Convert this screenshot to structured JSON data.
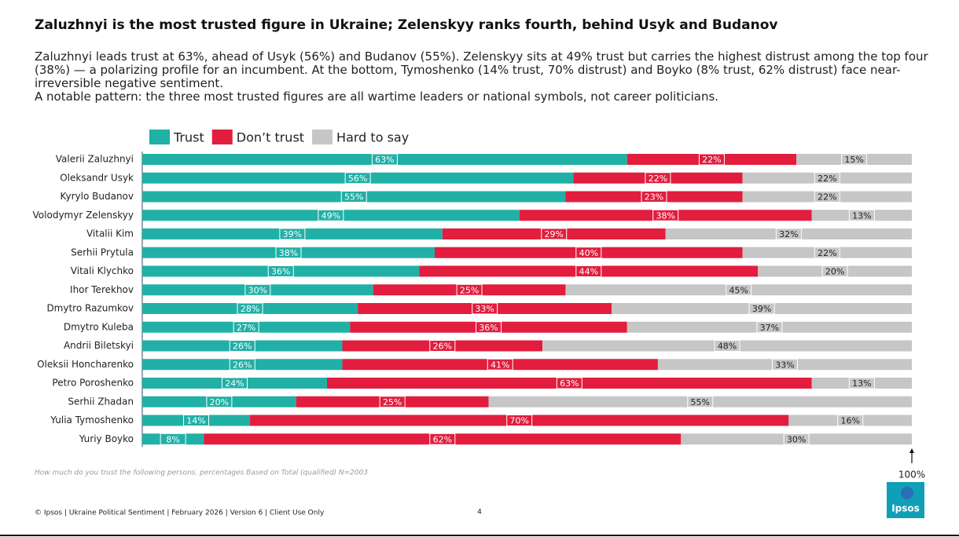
{
  "chart_data": {
    "type": "stacked-bar",
    "title": "Zaluzhnyi is the most trusted figure in Ukraine; Zelenskyy ranks fourth, behind Usyk and Budanov",
    "subtitle": [
      "Zaluzhnyi leads trust at 63%, ahead of Usyk (56%) and Budanov (55%). Zelenskyy sits at 49% trust but carries the highest distrust among the top four (38%) — a polarizing profile for an incumbent. At the bottom, Tymoshenko (14% trust, 70% distrust) and Boyko (8% trust, 62% distrust) face near-irreversible negative sentiment.",
      "A notable pattern: the three most trusted figures are all wartime leaders or national symbols, not career politicians."
    ],
    "categories": [
      "Valerii Zaluzhnyi",
      "Oleksandr Usyk",
      "Kyrylo Budanov",
      "Volodymyr Zelenskyy",
      "Vitalii Kim",
      "Serhii Prytula",
      "Vitali Klychko",
      "Ihor Terekhov",
      "Dmytro Razumkov",
      "Dmytro Kuleba",
      "Andrii Biletskyi",
      "Oleksii Honcharenko",
      "Petro Poroshenko",
      "Serhii Zhadan",
      "Yulia Tymoshenko",
      "Yuriy Boyko"
    ],
    "series": [
      {
        "name": "Trust",
        "color": "#21b0a6",
        "values": [
          63,
          56,
          55,
          49,
          39,
          38,
          36,
          30,
          28,
          27,
          26,
          26,
          24,
          20,
          14,
          8
        ],
        "value_labels": [
          "63%",
          "56%",
          "55%",
          "49%",
          "39%",
          "38%",
          "36%",
          "30%",
          "28%",
          "27%",
          "26%",
          "26%",
          "24%",
          "20%",
          "14%",
          "8%"
        ]
      },
      {
        "name": "Don’t trust",
        "color": "#e21d3e",
        "values": [
          22,
          22,
          23,
          38,
          29,
          40,
          44,
          25,
          33,
          36,
          26,
          41,
          63,
          25,
          70,
          62
        ],
        "value_labels": [
          "22%",
          "22%",
          "23%",
          "38%",
          "29%",
          "40%",
          "44%",
          "25%",
          "33%",
          "36%",
          "26%",
          "41%",
          "63%",
          "25%",
          "70%",
          "62%"
        ]
      },
      {
        "name": "Hard to say",
        "color": "#c6c6c6",
        "values": [
          15,
          22,
          22,
          13,
          32,
          22,
          20,
          45,
          39,
          37,
          48,
          33,
          13,
          55,
          16,
          30
        ],
        "value_labels": [
          "15%",
          "22%",
          "22%",
          "13%",
          "32%",
          "22%",
          "20%",
          "45%",
          "39%",
          "37%",
          "48%",
          "33%",
          "13%",
          "55%",
          "16%",
          "30%"
        ]
      }
    ],
    "xlim": [
      0,
      100
    ],
    "xticks": [
      {
        "value": 100,
        "label": "100%"
      }
    ],
    "footnote": "How much do you trust the following persons. percentages Based on Total (qualified) N=2003"
  },
  "footer": {
    "text": "© Ipsos | Ukraine Political Sentiment | February 2026 | Version 6 | Client Use Only",
    "page": "4",
    "logo": "Ipsos"
  }
}
